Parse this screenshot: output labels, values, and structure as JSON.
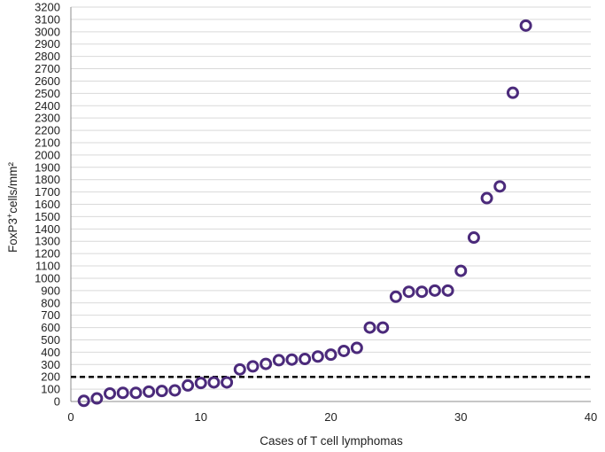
{
  "chart_data": {
    "type": "scatter",
    "xlabel": "Cases of T cell lymphomas",
    "ylabel_prefix": "FoxP3",
    "ylabel_sup": "+",
    "ylabel_suffix": "cells/mm²",
    "xlim": [
      0,
      40
    ],
    "ylim": [
      0,
      3200
    ],
    "x_ticks": [
      0,
      10,
      20,
      30,
      40
    ],
    "y_ticks": [
      0,
      100,
      200,
      300,
      400,
      500,
      600,
      700,
      800,
      900,
      1000,
      1100,
      1200,
      1300,
      1400,
      1500,
      1600,
      1700,
      1800,
      1900,
      2000,
      2100,
      2200,
      2300,
      2400,
      2500,
      2600,
      2700,
      2800,
      2900,
      3000,
      3100,
      3200
    ],
    "grid": "horizontal",
    "marker_color": "#4b2a7b",
    "threshold_color": "#000000",
    "threshold": {
      "y": 200,
      "style": "dashed"
    },
    "series": [
      {
        "x": [
          1,
          2,
          3,
          4,
          5,
          6,
          7,
          8,
          9,
          10,
          11,
          12,
          13,
          14,
          15,
          16,
          17,
          18,
          19,
          20,
          21,
          22,
          23,
          24,
          25,
          26,
          27,
          28,
          29,
          30,
          31,
          32,
          33,
          34,
          35
        ],
        "y": [
          5,
          25,
          65,
          70,
          70,
          80,
          85,
          90,
          130,
          150,
          155,
          155,
          260,
          285,
          305,
          335,
          340,
          345,
          365,
          380,
          410,
          435,
          600,
          600,
          850,
          890,
          890,
          900,
          900,
          1060,
          1330,
          1650,
          1745,
          2505,
          3050
        ]
      }
    ]
  }
}
